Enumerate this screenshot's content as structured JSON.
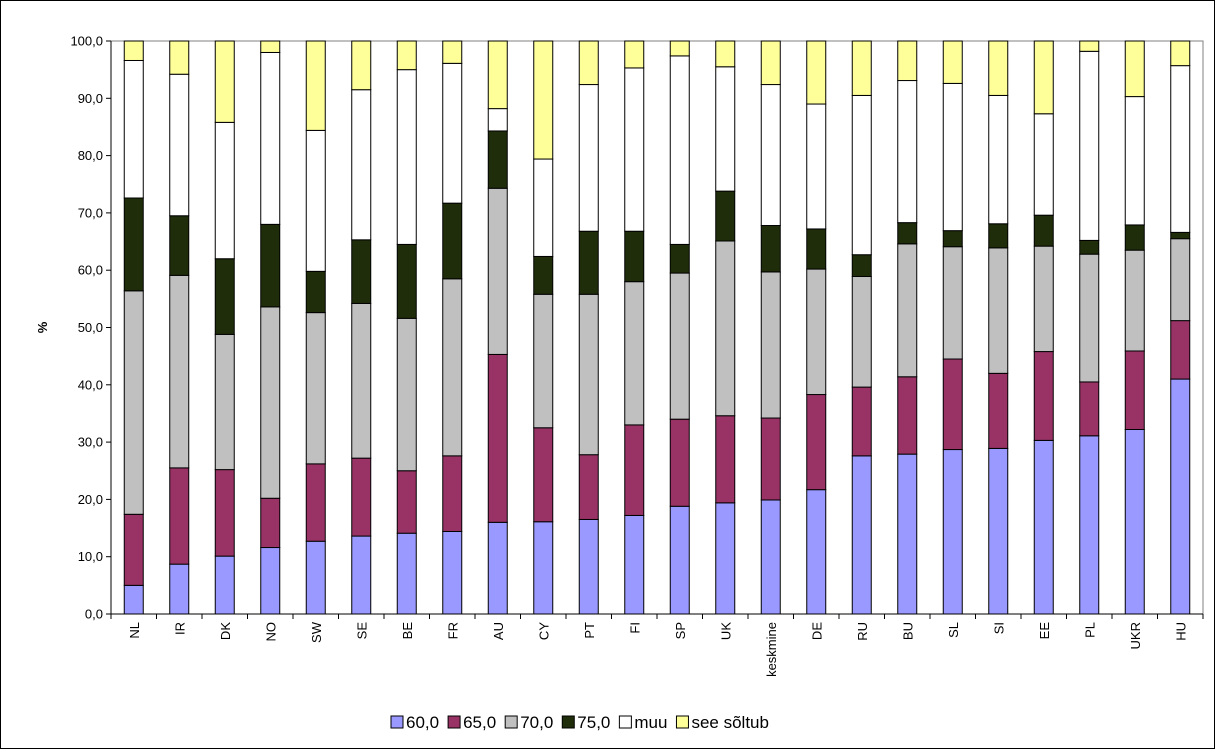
{
  "chart_data": {
    "type": "bar",
    "stacked": true,
    "ylabel": "%",
    "ylim": [
      0,
      100
    ],
    "yticks": [
      "0,0",
      "10,0",
      "20,0",
      "30,0",
      "40,0",
      "50,0",
      "60,0",
      "70,0",
      "80,0",
      "90,0",
      "100,0"
    ],
    "categories": [
      "NL",
      "IR",
      "DK",
      "NO",
      "SW",
      "SE",
      "BE",
      "FR",
      "AU",
      "CY",
      "PT",
      "FI",
      "SP",
      "UK",
      "keskmine",
      "DE",
      "RU",
      "BU",
      "SL",
      "SI",
      "EE",
      "PL",
      "UKR",
      "HU"
    ],
    "series": [
      {
        "name": "60,0",
        "color": "#9999ff",
        "values": [
          5.0,
          8.7,
          10.1,
          11.6,
          12.7,
          13.6,
          14.1,
          14.4,
          16.0,
          16.1,
          16.5,
          17.2,
          18.8,
          19.4,
          19.9,
          21.7,
          27.6,
          27.9,
          28.7,
          28.9,
          30.3,
          31.1,
          32.2,
          41.0
        ]
      },
      {
        "name": "65,0",
        "color": "#993366",
        "values": [
          12.4,
          16.8,
          15.1,
          8.6,
          13.5,
          13.6,
          10.9,
          13.2,
          29.3,
          16.4,
          11.3,
          15.8,
          15.2,
          15.2,
          14.3,
          16.6,
          12.0,
          13.5,
          15.8,
          13.1,
          15.5,
          9.4,
          13.7,
          10.2
        ]
      },
      {
        "name": "70,0",
        "color": "#c0c0c0",
        "values": [
          39.0,
          33.6,
          23.6,
          33.4,
          26.4,
          27.0,
          26.6,
          30.9,
          29.0,
          23.3,
          28.0,
          25.0,
          25.5,
          30.5,
          25.5,
          21.9,
          19.3,
          23.2,
          19.6,
          21.9,
          18.4,
          22.3,
          17.6,
          14.3
        ]
      },
      {
        "name": "75,0",
        "color": "#1f2d0a",
        "values": [
          16.2,
          10.4,
          13.2,
          14.4,
          7.2,
          11.1,
          12.9,
          13.2,
          10.0,
          6.6,
          11.0,
          8.8,
          5.0,
          8.7,
          8.1,
          7.0,
          3.8,
          3.7,
          2.8,
          4.2,
          5.4,
          2.4,
          4.4,
          1.1
        ]
      },
      {
        "name": "muu",
        "color": "#ffffff",
        "values": [
          24.0,
          24.7,
          23.8,
          30.0,
          24.6,
          26.2,
          30.5,
          24.4,
          3.9,
          17.0,
          25.6,
          28.5,
          32.9,
          21.7,
          24.6,
          21.8,
          27.8,
          24.8,
          25.7,
          22.4,
          17.7,
          33.0,
          22.4,
          29.1
        ]
      },
      {
        "name": "see sõltub",
        "color": "#ffff99",
        "values": [
          3.4,
          5.8,
          14.2,
          2.0,
          15.6,
          8.5,
          5.0,
          3.9,
          11.8,
          20.6,
          7.6,
          4.7,
          2.6,
          4.5,
          7.6,
          11.0,
          9.5,
          6.9,
          7.4,
          9.5,
          12.7,
          1.8,
          9.7,
          4.3
        ]
      }
    ],
    "legend": "bottom",
    "grid": false
  }
}
